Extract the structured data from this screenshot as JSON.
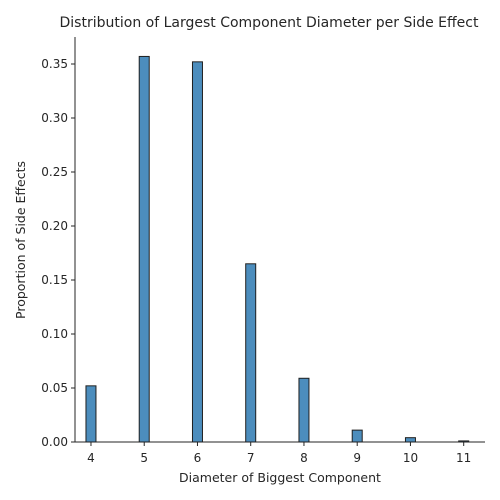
{
  "chart_data": {
    "type": "bar",
    "title": "Distribution of Largest Component Diameter per Side Effect",
    "xlabel": "Diameter of Biggest Component",
    "ylabel": "Proportion of Side Effects",
    "categories": [
      "4",
      "5",
      "6",
      "7",
      "8",
      "9",
      "10",
      "11"
    ],
    "x": [
      4,
      5,
      6,
      7,
      8,
      9,
      10,
      11
    ],
    "values": [
      0.052,
      0.357,
      0.352,
      0.165,
      0.059,
      0.011,
      0.004,
      0.001
    ],
    "xlim": [
      3.7,
      11.4
    ],
    "ylim": [
      0,
      0.375
    ],
    "yticks": [
      "0.00",
      "0.05",
      "0.10",
      "0.15",
      "0.20",
      "0.25",
      "0.30",
      "0.35"
    ],
    "grid": false,
    "colors": {
      "bar_fill": "#4c8dbd",
      "bar_edge": "#1f1f1f"
    }
  }
}
